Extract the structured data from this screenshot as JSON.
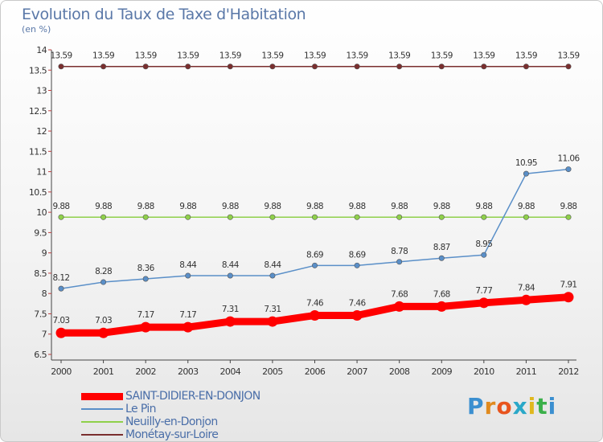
{
  "header": {
    "title": "Evolution du Taux de Taxe d'Habitation",
    "subtitle": "(en %)"
  },
  "brand": {
    "text": "Proxiti",
    "letter_colors": [
      "#3b8fd0",
      "#e08a1e",
      "#e8541e",
      "#2aa8c8",
      "#e0b81e",
      "#3bb04a",
      "#3b8fd0"
    ]
  },
  "chart_data": {
    "type": "line",
    "title": "Evolution du Taux de Taxe d'Habitation",
    "ylabel": "(en %)",
    "xlabel": "",
    "categories": [
      "2000",
      "2001",
      "2002",
      "2003",
      "2004",
      "2005",
      "2006",
      "2007",
      "2008",
      "2009",
      "2010",
      "2011",
      "2012"
    ],
    "ylim": [
      6.5,
      14
    ],
    "yticks": [
      "6.5",
      "7",
      "7.5",
      "8",
      "8.5",
      "9",
      "9.5",
      "10",
      "10.5",
      "11",
      "11.5",
      "12",
      "12.5",
      "13",
      "13.5",
      "14"
    ],
    "ytick_values": [
      6.5,
      7,
      7.5,
      8,
      8.5,
      9,
      9.5,
      10,
      10.5,
      11,
      11.5,
      12,
      12.5,
      13,
      13.5,
      14
    ],
    "grid": false,
    "legend_position": "bottom-left",
    "series": [
      {
        "name": "Monétay-sur-Loire",
        "color": "#7a2e2e",
        "emphasis": false,
        "values": [
          13.59,
          13.59,
          13.59,
          13.59,
          13.59,
          13.59,
          13.59,
          13.59,
          13.59,
          13.59,
          13.59,
          13.59,
          13.59
        ],
        "labels": [
          "13.59",
          "13.59",
          "13.59",
          "13.59",
          "13.59",
          "13.59",
          "13.59",
          "13.59",
          "13.59",
          "13.59",
          "13.59",
          "13.59",
          "13.59"
        ]
      },
      {
        "name": "Neuilly-en-Donjon",
        "color": "#8fd04a",
        "emphasis": false,
        "values": [
          9.88,
          9.88,
          9.88,
          9.88,
          9.88,
          9.88,
          9.88,
          9.88,
          9.88,
          9.88,
          9.88,
          9.88,
          9.88
        ],
        "labels": [
          "9.88",
          "9.88",
          "9.88",
          "9.88",
          "9.88",
          "9.88",
          "9.88",
          "9.88",
          "9.88",
          "9.88",
          "9.88",
          "9.88",
          "9.88"
        ]
      },
      {
        "name": "Le Pin",
        "color": "#5a8fc8",
        "emphasis": false,
        "values": [
          8.12,
          8.28,
          8.36,
          8.44,
          8.44,
          8.44,
          8.69,
          8.69,
          8.78,
          8.87,
          8.95,
          10.95,
          11.06
        ],
        "labels": [
          "8.12",
          "8.28",
          "8.36",
          "8.44",
          "8.44",
          "8.44",
          "8.69",
          "8.69",
          "8.78",
          "8.87",
          "8.95",
          "10.95",
          "11.06"
        ]
      },
      {
        "name": "SAINT-DIDIER-EN-DONJON",
        "color": "#ff0000",
        "emphasis": true,
        "values": [
          7.03,
          7.03,
          7.17,
          7.17,
          7.31,
          7.31,
          7.46,
          7.46,
          7.68,
          7.68,
          7.77,
          7.84,
          7.91
        ],
        "labels": [
          "7.03",
          "7.03",
          "7.17",
          "7.17",
          "7.31",
          "7.31",
          "7.46",
          "7.46",
          "7.68",
          "7.68",
          "7.77",
          "7.84",
          "7.91"
        ]
      }
    ],
    "legend": [
      {
        "name": "SAINT-DIDIER-EN-DONJON",
        "color": "#ff0000"
      },
      {
        "name": "Le Pin",
        "color": "#5a8fc8"
      },
      {
        "name": "Neuilly-en-Donjon",
        "color": "#8fd04a"
      },
      {
        "name": "Monétay-sur-Loire",
        "color": "#7a2e2e"
      }
    ]
  }
}
